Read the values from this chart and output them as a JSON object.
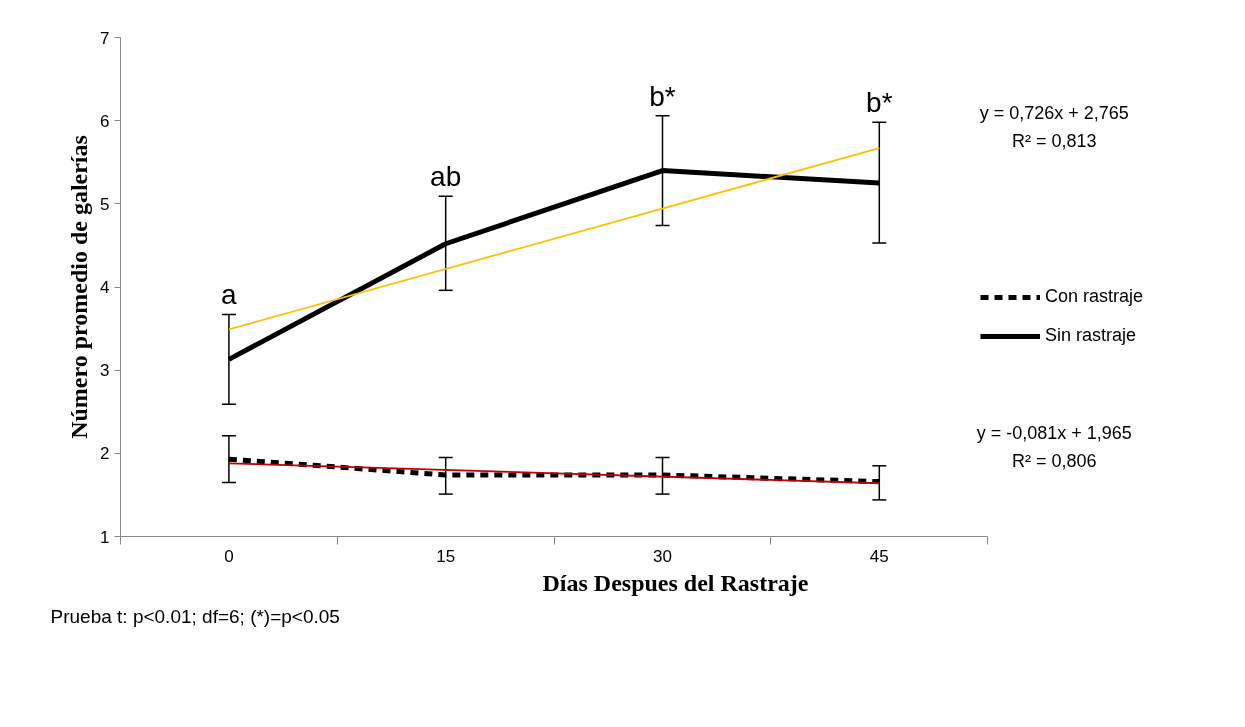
{
  "chart_data": {
    "type": "line",
    "xlabel": "Días Despues del Rastraje",
    "ylabel": "Número promedio de galerías",
    "categories": [
      "0",
      "15",
      "30",
      "45"
    ],
    "ylim": [
      1,
      7
    ],
    "yticks": [
      1,
      2,
      3,
      4,
      5,
      6,
      7
    ],
    "grid": false,
    "legend": "right",
    "marker": "none",
    "series": [
      {
        "name": "Con rastraje",
        "color": "#000000",
        "line_style": "dashed",
        "values": [
          1.93,
          1.74,
          1.74,
          1.66
        ],
        "errors": [
          [
            1.65,
            2.21
          ],
          [
            1.51,
            1.95
          ],
          [
            1.51,
            1.95
          ],
          [
            1.44,
            1.85
          ]
        ]
      },
      {
        "name": "Sin rastraje",
        "color": "#000000",
        "line_style": "solid",
        "values": [
          3.13,
          4.52,
          5.4,
          5.25
        ],
        "errors": [
          [
            2.59,
            3.67
          ],
          [
            3.96,
            5.09
          ],
          [
            4.74,
            6.06
          ],
          [
            4.53,
            5.98
          ]
        ]
      },
      {
        "color": "#ffc000",
        "line_style": "solid",
        "x": [
          "0",
          "45"
        ],
        "values": [
          3.49,
          5.67
        ]
      },
      {
        "color": "#c00000",
        "line_style": "solid",
        "x": [
          "0",
          "45"
        ],
        "values": [
          1.88,
          1.64
        ]
      }
    ],
    "annotations": [
      {
        "text": "a",
        "x": "0",
        "y": 3.67
      },
      {
        "text": "ab",
        "x": "15",
        "y": 5.09
      },
      {
        "text": "b*",
        "x": "30",
        "y": 6.06
      },
      {
        "text": "b*",
        "x": "45",
        "y": 5.98
      },
      "y = 0,726x + 2,765\nR² = 0,813",
      "y = -0,081x + 1,965\nR² = 0,806",
      "Prueba t: p<0.01; df=6; (*)=p<0.05"
    ]
  }
}
